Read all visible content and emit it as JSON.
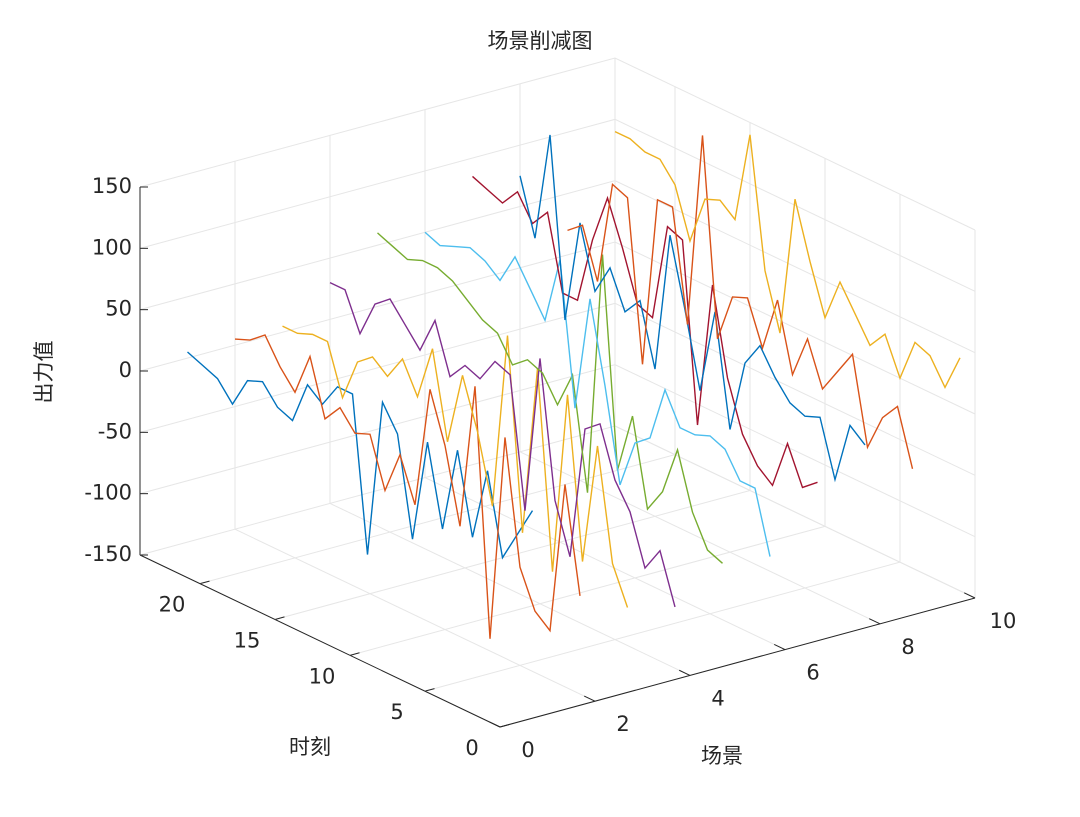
{
  "chart_data": {
    "type": "line3d",
    "title": "场景削减图",
    "xlabel": "场景",
    "ylabel": "时刻",
    "zlabel": "出力值",
    "xlim": [
      0,
      10
    ],
    "xticks": [
      0,
      2,
      4,
      6,
      8,
      10
    ],
    "ylim": [
      0,
      24
    ],
    "yticks": [
      0,
      5,
      10,
      15,
      20
    ],
    "zlim": [
      -150,
      150
    ],
    "zticks": [
      -150,
      -100,
      -50,
      0,
      50,
      100,
      150
    ],
    "grid": true,
    "time": [
      1,
      2,
      3,
      4,
      5,
      6,
      7,
      8,
      9,
      10,
      11,
      12,
      13,
      14,
      15,
      16,
      17,
      18,
      19,
      20,
      21,
      22,
      23,
      24
    ],
    "series": [
      {
        "scene": 1,
        "color": "#0072bd",
        "values": [
          10,
          -15,
          -40,
          25,
          -35,
          30,
          -40,
          25,
          -60,
          20,
          40,
          -90,
          35,
          35,
          15,
          25,
          -10,
          -5,
          10,
          5,
          -20,
          -5,
          0,
          5
        ]
      },
      {
        "scene": 2,
        "color": "#d95319",
        "values": [
          -70,
          15,
          -110,
          -100,
          -70,
          30,
          -140,
          60,
          -60,
          0,
          40,
          -60,
          -25,
          -60,
          -20,
          -25,
          -10,
          -25,
          20,
          -15,
          0,
          20,
          10,
          5
        ]
      },
      {
        "scene": 3,
        "color": "#edb120",
        "values": [
          -90,
          -60,
          30,
          -70,
          60,
          -90,
          70,
          -70,
          85,
          -60,
          -5,
          35,
          -25,
          45,
          0,
          25,
          5,
          15,
          5,
          -30,
          10,
          10,
          5,
          5
        ]
      },
      {
        "scene": 4,
        "color": "#7e2f8e",
        "values": [
          -100,
          -60,
          -80,
          -40,
          -20,
          20,
          10,
          -100,
          -60,
          50,
          -80,
          25,
          30,
          10,
          15,
          0,
          40,
          10,
          25,
          40,
          30,
          0,
          30,
          30
        ]
      },
      {
        "scene": 5,
        "color": "#77ac30",
        "values": [
          -75,
          -70,
          -45,
          0,
          -40,
          -60,
          10,
          -40,
          130,
          -70,
          20,
          -10,
          10,
          15,
          5,
          25,
          30,
          40,
          50,
          55,
          55,
          50,
          55,
          60
        ]
      },
      {
        "scene": 6,
        "color": "#4dbeee",
        "values": [
          -80,
          -30,
          -30,
          -10,
          -5,
          -10,
          -10,
          15,
          -30,
          -40,
          -80,
          -5,
          60,
          -35,
          80,
          25,
          45,
          65,
          40,
          50,
          55,
          50,
          45,
          50
        ]
      },
      {
        "scene": 7,
        "color": "#a2142f",
        "values": [
          -30,
          -40,
          -10,
          -50,
          -40,
          -20,
          20,
          90,
          -30,
          115,
          120,
          40,
          45,
          85,
          120,
          80,
          25,
          25,
          85,
          70,
          90,
          75,
          80,
          85
        ]
      },
      {
        "scene": 8,
        "color": "#0072bd",
        "values": [
          -10,
          0,
          -50,
          -5,
          -10,
          -5,
          10,
          30,
          10,
          -50,
          40,
          -30,
          30,
          85,
          -30,
          20,
          5,
          35,
          10,
          60,
          -25,
          120,
          30,
          75
        ]
      },
      {
        "scene": 9,
        "color": "#d95319",
        "values": [
          -40,
          5,
          -10,
          -40,
          30,
          10,
          -10,
          25,
          -10,
          45,
          0,
          35,
          30,
          -10,
          150,
          -10,
          80,
          80,
          -60,
          70,
          75,
          -10,
          30,
          20
        ]
      },
      {
        "scene": 10,
        "color": "#edb120",
        "values": [
          40,
          10,
          30,
          35,
          0,
          30,
          15,
          35,
          55,
          20,
          60,
          105,
          -10,
          35,
          140,
          65,
          75,
          70,
          30,
          70,
          85,
          85,
          90,
          90
        ]
      }
    ]
  }
}
